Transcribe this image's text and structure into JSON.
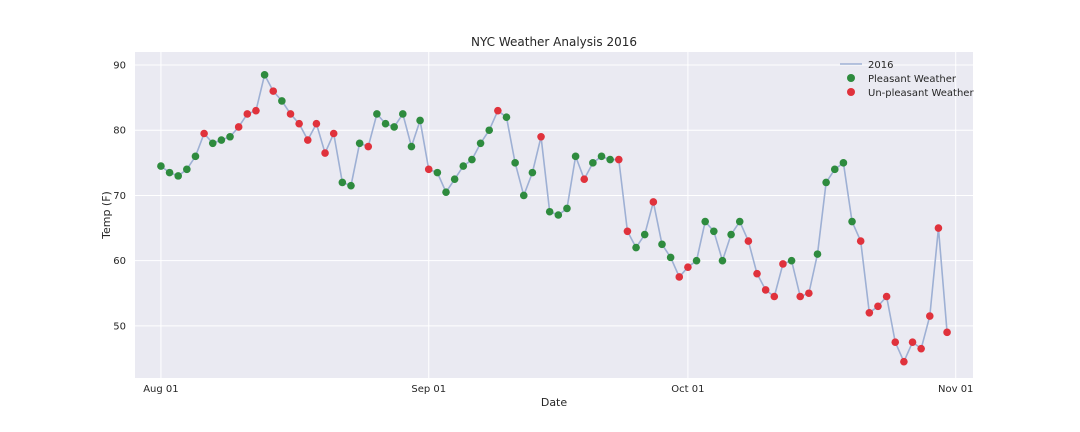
{
  "chart_data": {
    "type": "line",
    "title": "NYC Weather Analysis 2016",
    "xlabel": "Date",
    "ylabel": "Temp (F)",
    "x_range": [
      "2016-07-29",
      "2016-11-03"
    ],
    "ylim": [
      42,
      92
    ],
    "grid": true,
    "legend_position": "top-right",
    "x_ticks": [
      {
        "date": "2016-08-01",
        "label": "Aug 01"
      },
      {
        "date": "2016-09-01",
        "label": "Sep 01"
      },
      {
        "date": "2016-10-01",
        "label": "Oct 01"
      },
      {
        "date": "2016-11-01",
        "label": "Nov 01"
      }
    ],
    "y_ticks": [
      50,
      60,
      70,
      80,
      90
    ],
    "legend": [
      {
        "label": "2016",
        "kind": "line",
        "color": "#9eb0d4"
      },
      {
        "label": "Pleasant Weather",
        "kind": "marker",
        "color": "#2e8b3e"
      },
      {
        "label": "Un-pleasant Weather",
        "kind": "marker",
        "color": "#e0323c"
      }
    ],
    "series": [
      {
        "name": "2016",
        "color": "#9eb0d4",
        "start_date": "2016-08-01",
        "temps": [
          74.5,
          73.5,
          73,
          74,
          76,
          79.5,
          78,
          78.5,
          79,
          80.5,
          82.5,
          83,
          88.5,
          86,
          84.5,
          82.5,
          81,
          78.5,
          81,
          76.5,
          79.5,
          72,
          71.5,
          78,
          77.5,
          82.5,
          81,
          80.5,
          82.5,
          77.5,
          81.5,
          74,
          73.5,
          70.5,
          72.5,
          74.5,
          75.5,
          78,
          80,
          83,
          82,
          75,
          70,
          73.5,
          79,
          67.5,
          67,
          68,
          76,
          72.5,
          75,
          76,
          75.5,
          75.5,
          64.5,
          62,
          64,
          69,
          62.5,
          60.5,
          57.5,
          59,
          60,
          66,
          64.5,
          60,
          64,
          66,
          63,
          58,
          55.5,
          54.5,
          59.5,
          60,
          54.5,
          55,
          61,
          72,
          74,
          75,
          66,
          63,
          52,
          53,
          54.5,
          47.5,
          44.5,
          47.5,
          46.5,
          51.5,
          65,
          49
        ],
        "weather": [
          "P",
          "P",
          "P",
          "P",
          "P",
          "U",
          "P",
          "P",
          "P",
          "U",
          "U",
          "U",
          "P",
          "U",
          "P",
          "U",
          "U",
          "U",
          "U",
          "U",
          "U",
          "P",
          "P",
          "P",
          "U",
          "P",
          "P",
          "P",
          "P",
          "P",
          "P",
          "U",
          "P",
          "P",
          "P",
          "P",
          "P",
          "P",
          "P",
          "U",
          "P",
          "P",
          "P",
          "P",
          "U",
          "P",
          "P",
          "P",
          "P",
          "U",
          "P",
          "P",
          "P",
          "U",
          "U",
          "P",
          "P",
          "U",
          "P",
          "P",
          "U",
          "U",
          "P",
          "P",
          "P",
          "P",
          "P",
          "P",
          "U",
          "U",
          "U",
          "U",
          "U",
          "P",
          "U",
          "U",
          "P",
          "P",
          "P",
          "P",
          "P",
          "U",
          "U",
          "U",
          "U",
          "U",
          "U",
          "U",
          "U",
          "U",
          "U",
          "U"
        ]
      }
    ]
  }
}
